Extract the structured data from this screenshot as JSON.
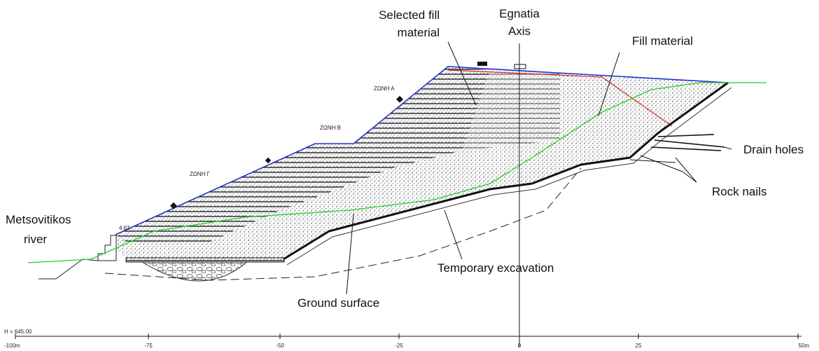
{
  "annotations": {
    "selected_fill_material": [
      "Selected fill",
      "material"
    ],
    "egnatia_axis": [
      "Egnatia",
      "Axis"
    ],
    "fill_material": "Fill material",
    "drain_holes": "Drain holes",
    "rock_nails": "Rock nails",
    "metsovitikos_river": [
      "Metsovitikos",
      "river"
    ],
    "temporary_excavation": "Temporary excavation",
    "ground_surface": "Ground surface"
  },
  "zones": [
    "ΖΩΝΗ Α",
    "ΖΩΝΗ Β",
    "ΖΩΝΗ Γ"
  ],
  "step_height": "4.62",
  "scale": {
    "elevation": "H = 645.00",
    "ticks": [
      "-100m",
      "-75",
      "-50",
      "-25",
      "0",
      "25",
      "50m"
    ]
  }
}
